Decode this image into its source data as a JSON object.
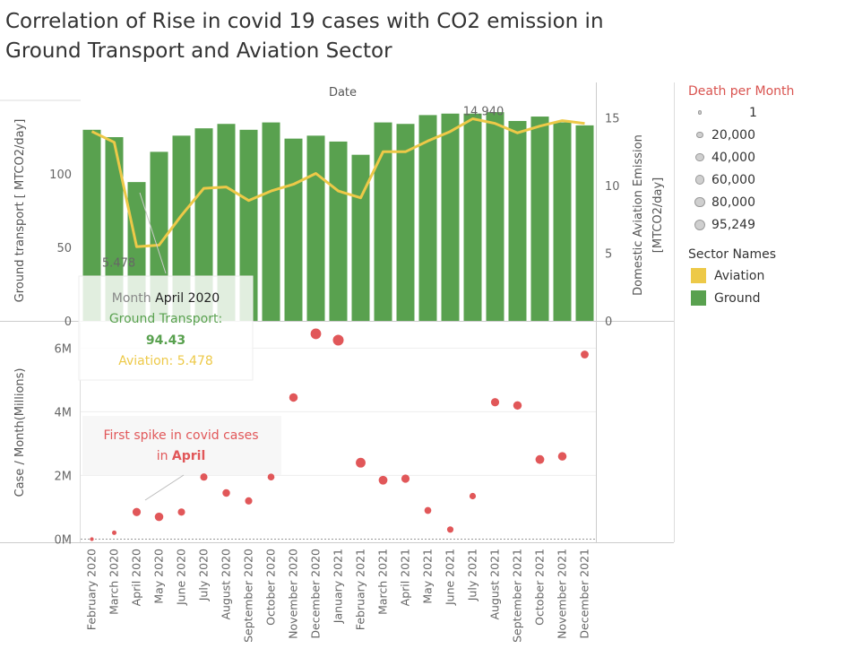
{
  "title": {
    "line1": "Correlation of Rise in covid 19 cases with CO2 emission in",
    "line2": "Ground Transport and Aviation Sector"
  },
  "colors": {
    "ground": "#59a14f",
    "aviation": "#edc948",
    "cases": "#e15759",
    "death_legend_title": "#d9534f"
  },
  "chart_data": [
    {
      "type": "bar",
      "title": "",
      "header": "Date",
      "categories": [
        "February 2020",
        "March 2020",
        "April 2020",
        "May 2020",
        "June 2020",
        "July 2020",
        "August 2020",
        "September 2020",
        "October 2020",
        "November 2020",
        "December 2020",
        "January 2021",
        "February 2021",
        "March 2021",
        "April 2021",
        "May 2021",
        "June 2021",
        "July 2021",
        "August 2021",
        "September 2021",
        "October 2021",
        "November 2021",
        "December 2021"
      ],
      "series": [
        {
          "name": "Ground",
          "axis": "left",
          "type": "bar",
          "values": [
            130,
            125,
            94.43,
            115,
            126,
            131,
            134,
            130,
            135,
            124,
            126,
            122,
            113,
            135,
            134,
            140,
            141,
            141,
            142,
            136,
            139,
            135,
            133
          ]
        },
        {
          "name": "Aviation",
          "axis": "right",
          "type": "line",
          "values": [
            14.0,
            13.2,
            5.478,
            5.6,
            7.8,
            9.8,
            9.9,
            8.9,
            9.6,
            10.1,
            10.9,
            9.6,
            9.1,
            12.5,
            12.5,
            13.3,
            14.0,
            14.94,
            14.6,
            13.9,
            14.4,
            14.8,
            14.6
          ]
        }
      ],
      "ylabel_left": "Ground transport  [ MTCO2/day]",
      "ylabel_right": "Domestic Aviation  Emission [MTCO2/day]",
      "ylim_left": [
        0,
        150
      ],
      "ylim_right": [
        0,
        16.3
      ],
      "yticks_left": [
        {
          "value": 0,
          "label": "0"
        },
        {
          "value": 50,
          "label": "50"
        },
        {
          "value": 100,
          "label": "100"
        }
      ],
      "yticks_right": [
        {
          "value": 0,
          "label": "0"
        },
        {
          "value": 5,
          "label": "5"
        },
        {
          "value": 10,
          "label": "10"
        },
        {
          "value": 15,
          "label": "15"
        }
      ],
      "data_labels": [
        {
          "series": "Aviation",
          "category": "April 2020",
          "label": "5.478"
        },
        {
          "series": "Aviation",
          "category": "July 2021",
          "label": "14.940"
        }
      ],
      "tooltip": {
        "month_label": "Month",
        "month_value": "April 2020",
        "ground_label": "Ground Transport:",
        "ground_value": "94.43",
        "aviation_label": "Aviation: 5.478"
      }
    },
    {
      "type": "scatter",
      "title": "",
      "categories": [
        "February 2020",
        "March 2020",
        "April 2020",
        "May 2020",
        "June 2020",
        "July 2020",
        "August 2020",
        "September 2020",
        "October 2020",
        "November 2020",
        "December 2020",
        "January 2021",
        "February 2021",
        "March 2021",
        "April 2021",
        "May 2021",
        "June 2021",
        "July 2021",
        "August 2021",
        "September 2021",
        "October 2021",
        "November 2021",
        "December 2021"
      ],
      "series": [
        {
          "name": "Cases",
          "values": [
            0.0,
            0.2,
            0.85,
            0.7,
            0.85,
            1.95,
            1.45,
            1.2,
            1.95,
            4.45,
            6.45,
            6.25,
            2.4,
            1.85,
            1.9,
            0.9,
            0.3,
            1.35,
            4.3,
            4.2,
            2.5,
            2.6,
            5.8
          ],
          "deaths": [
            100,
            1500,
            40000,
            45000,
            25000,
            25000,
            30000,
            25000,
            20000,
            45000,
            90000,
            95249,
            70000,
            50000,
            40000,
            20000,
            15000,
            15000,
            40000,
            45000,
            50000,
            45000,
            35000
          ]
        }
      ],
      "ylabel": "Case / Month(Millions)",
      "ylim": [
        -0.1,
        6.8
      ],
      "yticks": [
        {
          "value": 0,
          "label": "0M"
        },
        {
          "value": 2,
          "label": "2M"
        },
        {
          "value": 4,
          "label": "4M"
        },
        {
          "value": 6,
          "label": "6M"
        }
      ],
      "annotation": {
        "line1": "First spike in covid cases",
        "line2_prefix": "in ",
        "line2_bold": "April"
      }
    }
  ],
  "legend": {
    "size_title": "Death per Month",
    "size_items": [
      {
        "label": "1",
        "value": 1
      },
      {
        "label": "20,000",
        "value": 20000
      },
      {
        "label": "40,000",
        "value": 40000
      },
      {
        "label": "60,000",
        "value": 60000
      },
      {
        "label": "80,000",
        "value": 80000
      },
      {
        "label": "95,249",
        "value": 95249
      }
    ],
    "color_title": "Sector Names",
    "color_items": [
      {
        "label": "Aviation",
        "color": "#edc948"
      },
      {
        "label": "Ground",
        "color": "#59a14f"
      }
    ]
  }
}
